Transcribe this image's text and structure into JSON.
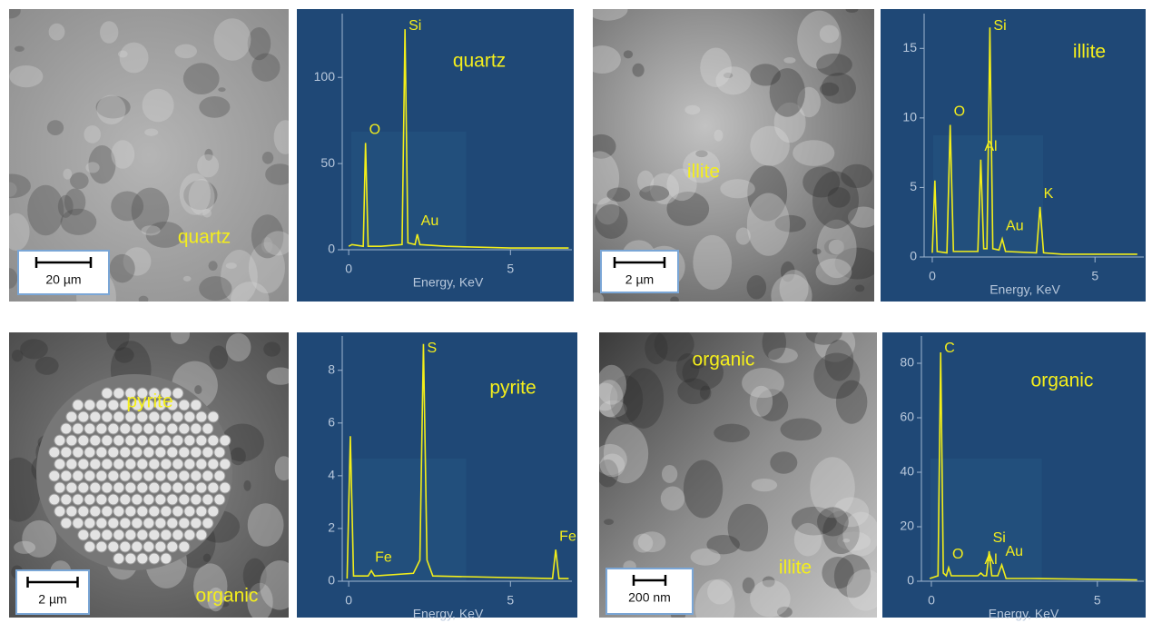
{
  "chart_data": [
    {
      "type": "line",
      "title": "quartz",
      "xlabel": "Energy,  KeV",
      "color": "#f2ee1a",
      "x": [
        0,
        0.1,
        0.45,
        0.52,
        0.6,
        1.0,
        1.65,
        1.74,
        1.83,
        2.05,
        2.12,
        2.2,
        3,
        5,
        6.8
      ],
      "values": [
        2,
        3,
        2,
        62,
        2,
        2,
        3,
        128,
        4,
        3,
        9,
        3,
        2,
        1,
        1
      ],
      "xlim": [
        -0.2,
        6.9
      ],
      "ylim": [
        0,
        137
      ],
      "xticks": [
        0,
        5
      ],
      "yticks": [
        0,
        50,
        100
      ],
      "peak_labels": [
        {
          "text": "O",
          "x": 0.52
        },
        {
          "text": "Si",
          "x": 1.74
        },
        {
          "text": "Au",
          "x": 2.12
        }
      ]
    },
    {
      "type": "line",
      "title": "illite",
      "xlabel": "Energy,  KeV",
      "color": "#f2ee1a",
      "x": [
        0,
        0.08,
        0.15,
        0.45,
        0.55,
        0.65,
        1.4,
        1.49,
        1.58,
        1.68,
        1.77,
        1.86,
        2.05,
        2.15,
        2.25,
        3.2,
        3.31,
        3.42,
        4,
        6.3
      ],
      "values": [
        0.3,
        5.5,
        0.4,
        0.3,
        9.5,
        0.4,
        0.4,
        7,
        0.6,
        0.6,
        16.5,
        0.6,
        0.5,
        1.3,
        0.4,
        0.3,
        3.6,
        0.3,
        0.2,
        0.2
      ],
      "xlim": [
        -0.25,
        6.5
      ],
      "ylim": [
        0,
        17.5
      ],
      "xticks": [
        0,
        5
      ],
      "yticks": [
        0,
        5,
        10,
        15
      ],
      "peak_labels": [
        {
          "text": "O",
          "x": 0.55
        },
        {
          "text": "Al",
          "x": 1.49
        },
        {
          "text": "Si",
          "x": 1.77
        },
        {
          "text": "Au",
          "x": 2.15
        },
        {
          "text": "K",
          "x": 3.31
        }
      ]
    },
    {
      "type": "line",
      "title": "pyrite",
      "xlabel": "Energy,  KeV",
      "color": "#f2ee1a",
      "x": [
        -0.05,
        0.05,
        0.15,
        0.6,
        0.7,
        0.8,
        2.0,
        2.2,
        2.31,
        2.42,
        2.6,
        6.3,
        6.4,
        6.5,
        6.8
      ],
      "values": [
        0.1,
        5.5,
        0.2,
        0.2,
        0.4,
        0.2,
        0.3,
        0.8,
        9,
        0.8,
        0.2,
        0.1,
        1.2,
        0.1,
        0.1
      ],
      "xlim": [
        -0.2,
        6.9
      ],
      "ylim": [
        0,
        9.3
      ],
      "xticks": [
        0,
        5
      ],
      "yticks": [
        0,
        2,
        4,
        6,
        8
      ],
      "peak_labels": [
        {
          "text": "S",
          "x": 2.31
        },
        {
          "text": "Fe",
          "x": 0.7
        },
        {
          "text": "Fe",
          "x": 6.4
        }
      ]
    },
    {
      "type": "line",
      "title": "organic",
      "xlabel": "Energy,  KeV",
      "color": "#f2ee1a",
      "x": [
        -0.05,
        0.2,
        0.28,
        0.36,
        0.45,
        0.52,
        0.6,
        1.4,
        1.49,
        1.58,
        1.66,
        1.74,
        1.82,
        2.0,
        2.12,
        2.25,
        3,
        6.2
      ],
      "values": [
        1,
        2,
        84,
        3,
        2,
        5,
        2,
        2,
        3,
        2,
        2,
        11,
        2,
        2,
        6,
        1,
        1,
        0.5
      ],
      "xlim": [
        -0.3,
        6.4
      ],
      "ylim": [
        0,
        90
      ],
      "xticks": [
        0,
        5
      ],
      "yticks": [
        0,
        20,
        40,
        60,
        80
      ],
      "peak_labels": [
        {
          "text": "C",
          "x": 0.28
        },
        {
          "text": "O",
          "x": 0.52
        },
        {
          "text": "Al",
          "x": 1.49
        },
        {
          "text": "Si",
          "x": 1.74
        },
        {
          "text": "Au",
          "x": 2.12
        }
      ]
    }
  ],
  "images": [
    {
      "labels": [
        "quartz"
      ],
      "scale_bar": "20 µm"
    },
    {
      "labels": [
        "illite"
      ],
      "scale_bar": "2 µm"
    },
    {
      "labels": [
        "pyrite",
        "organic"
      ],
      "scale_bar": "2 µm"
    },
    {
      "labels": [
        "organic",
        "illite"
      ],
      "scale_bar": "200 nm"
    }
  ]
}
